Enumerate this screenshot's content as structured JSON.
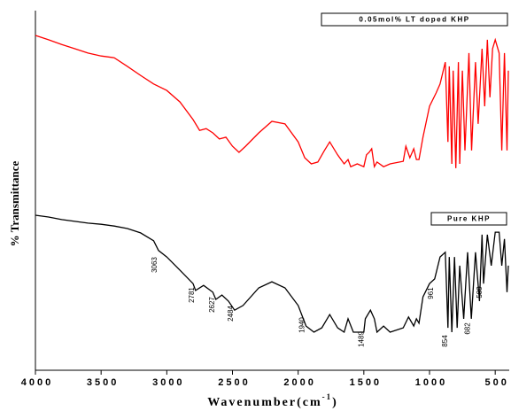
{
  "chart_data": {
    "type": "line",
    "y_label": "% Transmittance",
    "x_label": "Wavenumber(cm",
    "x_label_sup": "-1",
    "x_label_end": ")",
    "xlim": [
      4000,
      400
    ],
    "ylim": [
      0,
      100
    ],
    "xticks": [
      4000,
      3500,
      3000,
      2500,
      2000,
      1500,
      1000,
      500
    ],
    "peak_labels": [
      3063,
      2781,
      2627,
      2484,
      1940,
      1489,
      961,
      854,
      682,
      589
    ],
    "series": [
      {
        "name": "0.05mol% LT doped KHP",
        "color": "#ff0000",
        "x": [
          4000,
          3900,
          3800,
          3700,
          3600,
          3500,
          3400,
          3300,
          3200,
          3100,
          3000,
          2900,
          2800,
          2750,
          2700,
          2650,
          2600,
          2550,
          2500,
          2450,
          2400,
          2300,
          2200,
          2100,
          2000,
          1950,
          1900,
          1850,
          1800,
          1760,
          1700,
          1650,
          1620,
          1600,
          1550,
          1500,
          1480,
          1460,
          1440,
          1420,
          1400,
          1350,
          1300,
          1200,
          1180,
          1150,
          1120,
          1100,
          1080,
          1050,
          1000,
          950,
          920,
          880,
          860,
          850,
          830,
          820,
          800,
          780,
          770,
          750,
          730,
          700,
          680,
          650,
          630,
          600,
          580,
          560,
          540,
          520,
          500,
          470,
          450,
          430,
          410,
          400
        ],
        "values": [
          93.1,
          91.9,
          90.6,
          89.4,
          88.2,
          87.4,
          86.9,
          84.5,
          82.0,
          79.6,
          77.8,
          74.6,
          69.7,
          66.7,
          67.2,
          66.0,
          64.3,
          64.8,
          62.3,
          60.6,
          62.3,
          66.0,
          69.2,
          68.5,
          63.5,
          59.1,
          57.4,
          57.9,
          61.1,
          63.5,
          59.9,
          57.4,
          58.6,
          56.6,
          57.4,
          56.6,
          59.9,
          60.6,
          61.6,
          56.6,
          57.9,
          56.6,
          57.4,
          58.1,
          62.3,
          59.1,
          61.6,
          58.6,
          58.6,
          64.8,
          73.4,
          77.1,
          79.6,
          85.7,
          63.5,
          84.5,
          57.4,
          83.3,
          56.2,
          85.7,
          57.4,
          83.3,
          61.1,
          88.2,
          61.1,
          85.7,
          68.5,
          89.4,
          73.4,
          91.9,
          75.9,
          89.4,
          91.9,
          88.2,
          61.1,
          88.2,
          61.1,
          83.3
        ]
      },
      {
        "name": "Pure KHP",
        "color": "#000000",
        "x": [
          4000,
          3900,
          3800,
          3700,
          3600,
          3500,
          3400,
          3300,
          3200,
          3100,
          3063,
          3000,
          2900,
          2800,
          2781,
          2720,
          2650,
          2627,
          2580,
          2530,
          2484,
          2420,
          2300,
          2200,
          2100,
          2000,
          1940,
          1880,
          1820,
          1760,
          1700,
          1650,
          1620,
          1580,
          1530,
          1500,
          1489,
          1450,
          1420,
          1400,
          1350,
          1300,
          1200,
          1160,
          1120,
          1100,
          1080,
          1050,
          1000,
          961,
          920,
          880,
          860,
          850,
          830,
          810,
          790,
          770,
          740,
          710,
          682,
          650,
          620,
          600,
          589,
          560,
          530,
          500,
          470,
          450,
          430,
          410,
          400
        ],
        "values": [
          43.1,
          42.6,
          41.9,
          41.4,
          40.9,
          40.6,
          40.1,
          39.4,
          38.2,
          36.0,
          33.3,
          31.5,
          27.8,
          24.1,
          22.2,
          23.6,
          21.7,
          19.7,
          20.9,
          19.2,
          16.7,
          18.0,
          22.9,
          24.6,
          22.9,
          18.0,
          12.3,
          10.6,
          11.8,
          15.5,
          11.8,
          10.6,
          14.3,
          10.6,
          10.6,
          10.6,
          14.3,
          16.7,
          14.3,
          10.6,
          12.3,
          10.6,
          11.8,
          14.8,
          12.3,
          14.3,
          13.1,
          20.4,
          24.1,
          25.4,
          31.5,
          32.8,
          11.8,
          31.5,
          10.6,
          31.5,
          11.8,
          29.1,
          14.3,
          32.8,
          14.3,
          32.8,
          19.2,
          37.7,
          24.1,
          37.7,
          29.1,
          38.4,
          38.4,
          29.1,
          36.5,
          21.7,
          29.1
        ]
      }
    ]
  }
}
